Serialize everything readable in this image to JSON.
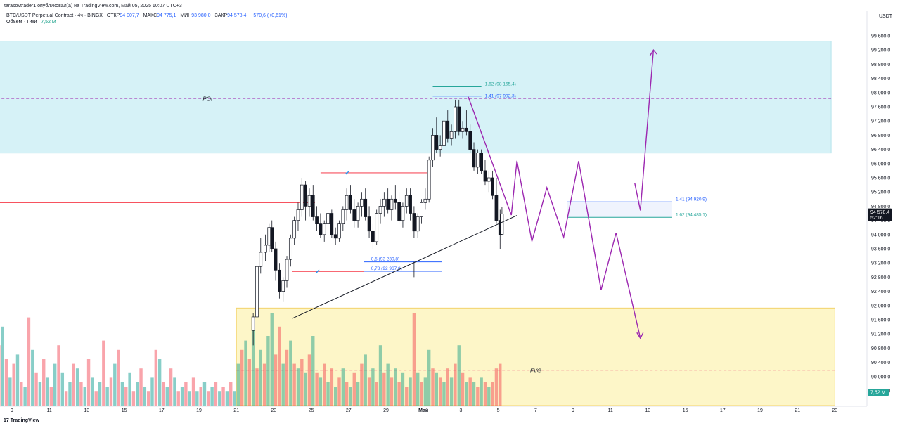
{
  "header": {
    "publisher_line": "tarasovtrader1 опубликовал(а) на TradingView.com, Май 05, 2025 10:07 UTC+3",
    "symbol": "BTC/USDT Perpetual Contract · 4ч · BINGX",
    "open_label": "ОТКР",
    "open_value": "94 007,7",
    "high_label": "МАКС",
    "high_value": "94 775,1",
    "low_label": "МИН",
    "low_value": "93 980,0",
    "close_label": "ЗАКР",
    "close_value": "94 578,4",
    "change": "+570,6 (+0,61%)",
    "volume_label": "Объём · Тики",
    "volume_value": "7,52 M"
  },
  "footer": {
    "brand": "TradingView",
    "logo_glyph": "17"
  },
  "chart_data": {
    "type": "candlestick",
    "currency": "USDT",
    "y_ticks": [
      "99 600,0",
      "99 200,0",
      "98 800,0",
      "98 400,0",
      "98 000,0",
      "97 600,0",
      "97 200,0",
      "96 800,0",
      "96 400,0",
      "96 000,0",
      "95 600,0",
      "95 200,0",
      "94 800,0",
      "94 400,0",
      "94 000,0",
      "93 600,0",
      "93 200,0",
      "92 800,0",
      "92 400,0",
      "92 000,0",
      "91 600,0",
      "91 200,0",
      "90 800,0",
      "90 400,0",
      "90 000,0",
      "89 600,0"
    ],
    "y_tick_values": [
      99600,
      99200,
      98800,
      98400,
      98000,
      97600,
      97200,
      96800,
      96400,
      96000,
      95600,
      95200,
      94800,
      94400,
      94000,
      93600,
      93200,
      92800,
      92400,
      92000,
      91600,
      91200,
      90800,
      90400,
      90000,
      89600
    ],
    "x_ticks": [
      "9",
      "11",
      "13",
      "15",
      "17",
      "19",
      "21",
      "23",
      "25",
      "27",
      "29",
      "Май",
      "3",
      "5",
      "7",
      "9",
      "11",
      "13",
      "15",
      "17",
      "19",
      "21",
      "23"
    ],
    "x_tick_days": [
      9,
      11,
      13,
      15,
      17,
      19,
      21,
      23,
      25,
      27,
      29,
      31,
      33,
      35,
      37,
      39,
      41,
      43,
      45,
      47,
      49,
      51,
      53
    ],
    "last_price": "94 578,4",
    "last_price_value": 94578.4,
    "countdown": "52:16",
    "volume_last": "7,52 M",
    "zones": [
      {
        "label": "POI",
        "from": 96300,
        "to": 99450,
        "line": 97830,
        "color": "#d6f2f7"
      },
      {
        "label": "FVG",
        "from": 89400,
        "to": 91930,
        "line": 90180,
        "color": "#fdf6c8"
      }
    ],
    "fib_levels": [
      {
        "label": "1,62 (98 165,4)",
        "value": 98165.4,
        "color": "#26a69a"
      },
      {
        "label": "1,41 (97 902,3)",
        "value": 97902.3,
        "color": "#2962ff"
      },
      {
        "label": "0,5 (93 230,8)",
        "value": 93230.8,
        "color": "#2962ff"
      },
      {
        "label": "0,78 (92 967,0)",
        "value": 92967.0,
        "color": "#2962ff"
      },
      {
        "label": "1,41 (94 920,9)",
        "value": 94920.9,
        "color": "#2962ff"
      },
      {
        "label": "1,62 (94 485,1)",
        "value": 94485.1,
        "color": "#26a69a"
      }
    ],
    "levels": [
      {
        "kind": "red",
        "from_day": 7.0,
        "to_day": 25.2,
        "value": 94900
      },
      {
        "kind": "red",
        "from_day": 25.5,
        "to_day": 31.3,
        "value": 95740
      },
      {
        "kind": "red",
        "from_day": 24.0,
        "to_day": 27.8,
        "value": 92960
      }
    ],
    "trendline": [
      [
        24.0,
        91640
      ],
      [
        36.0,
        94540
      ]
    ],
    "projection_path": [
      [
        33.4,
        97880
      ],
      [
        34.8,
        95850
      ],
      [
        35.7,
        94550
      ],
      [
        36.0,
        96080
      ],
      [
        36.8,
        93810
      ],
      [
        37.6,
        95320
      ],
      [
        38.5,
        93930
      ],
      [
        39.3,
        96070
      ],
      [
        40.5,
        92440
      ],
      [
        41.3,
        94050
      ],
      [
        42.6,
        91080
      ]
    ],
    "projection_up": [
      [
        42.3,
        95450
      ],
      [
        42.6,
        94680
      ],
      [
        43.3,
        99200
      ]
    ],
    "candles": [
      [
        21.9,
        91300,
        91780,
        90880,
        91680
      ],
      [
        22.1,
        91680,
        93200,
        91400,
        93100
      ],
      [
        22.3,
        93100,
        93900,
        92900,
        93500
      ],
      [
        22.55,
        93500,
        94000,
        93250,
        93700
      ],
      [
        22.75,
        93700,
        94300,
        93500,
        94200
      ],
      [
        22.9,
        94200,
        94400,
        93500,
        93600
      ],
      [
        23.1,
        93600,
        93800,
        92700,
        93000
      ],
      [
        23.3,
        93000,
        93200,
        92200,
        92400
      ],
      [
        23.5,
        92400,
        92800,
        92100,
        92700
      ],
      [
        23.7,
        92700,
        93400,
        92500,
        93300
      ],
      [
        23.9,
        93300,
        94000,
        93100,
        93900
      ],
      [
        24.1,
        93900,
        94500,
        93700,
        94400
      ],
      [
        24.3,
        94400,
        94900,
        94100,
        94700
      ],
      [
        24.5,
        94700,
        95600,
        94500,
        95400
      ],
      [
        24.7,
        95400,
        95500,
        94400,
        94800
      ],
      [
        24.9,
        94800,
        95300,
        94500,
        95100
      ],
      [
        25.1,
        95100,
        95400,
        94400,
        94500
      ],
      [
        25.3,
        94500,
        94800,
        94100,
        94300
      ],
      [
        25.5,
        94300,
        94600,
        93900,
        94000
      ],
      [
        25.7,
        94000,
        94400,
        93800,
        94300
      ],
      [
        25.9,
        94300,
        94700,
        94100,
        94600
      ],
      [
        26.1,
        94600,
        94700,
        93900,
        94000
      ],
      [
        26.3,
        94000,
        94200,
        93700,
        93900
      ],
      [
        26.5,
        93900,
        94400,
        93800,
        94300
      ],
      [
        26.7,
        94300,
        94800,
        94100,
        94700
      ],
      [
        26.9,
        94700,
        95300,
        94400,
        95100
      ],
      [
        27.1,
        95100,
        95400,
        94600,
        94700
      ],
      [
        27.3,
        94700,
        95000,
        94200,
        94400
      ],
      [
        27.5,
        94400,
        94900,
        94200,
        94800
      ],
      [
        27.7,
        94800,
        95200,
        94500,
        95000
      ],
      [
        27.9,
        95000,
        95300,
        94400,
        94500
      ],
      [
        28.1,
        94500,
        94800,
        93900,
        94100
      ],
      [
        28.3,
        94100,
        94300,
        93600,
        93800
      ],
      [
        28.5,
        93800,
        94700,
        93700,
        94600
      ],
      [
        28.7,
        94600,
        95000,
        94300,
        94800
      ],
      [
        28.9,
        94800,
        95200,
        94500,
        95000
      ],
      [
        29.1,
        95000,
        95300,
        94600,
        94700
      ],
      [
        29.3,
        94700,
        95100,
        94400,
        95000
      ],
      [
        29.5,
        95000,
        95400,
        94700,
        94900
      ],
      [
        29.7,
        94900,
        95200,
        94300,
        94400
      ],
      [
        29.9,
        94400,
        94900,
        94200,
        94800
      ],
      [
        30.1,
        94800,
        95300,
        94600,
        95100
      ],
      [
        30.3,
        95100,
        95300,
        94400,
        94600
      ],
      [
        30.5,
        94600,
        94800,
        93900,
        94100
      ],
      [
        30.7,
        94100,
        94600,
        93900,
        94500
      ],
      [
        30.9,
        94500,
        95000,
        94300,
        94900
      ],
      [
        31.1,
        94900,
        95300,
        94700,
        95000
      ],
      [
        31.3,
        95000,
        96200,
        94900,
        96100
      ],
      [
        31.5,
        96100,
        97000,
        95900,
        96800
      ],
      [
        31.7,
        96800,
        97300,
        96300,
        96400
      ],
      [
        31.9,
        96400,
        96800,
        96200,
        96500
      ],
      [
        32.1,
        96500,
        97300,
        96300,
        97200
      ],
      [
        32.3,
        97200,
        97500,
        96600,
        96700
      ],
      [
        32.5,
        96700,
        97100,
        96500,
        96900
      ],
      [
        32.7,
        96900,
        97800,
        96700,
        97600
      ],
      [
        32.9,
        97600,
        97800,
        96800,
        96900
      ],
      [
        33.1,
        96900,
        97200,
        96700,
        97000
      ],
      [
        33.3,
        97000,
        97500,
        96800,
        96900
      ],
      [
        33.5,
        96900,
        97100,
        96300,
        96400
      ],
      [
        33.7,
        96400,
        96600,
        95800,
        95900
      ],
      [
        33.9,
        95900,
        96400,
        95700,
        96300
      ],
      [
        34.1,
        96300,
        96400,
        95700,
        95800
      ],
      [
        34.3,
        95800,
        96100,
        95400,
        95500
      ],
      [
        34.5,
        95500,
        95800,
        95200,
        95600
      ],
      [
        34.7,
        95600,
        95800,
        95000,
        95100
      ],
      [
        34.9,
        95100,
        95600,
        94300,
        94400
      ],
      [
        35.1,
        94400,
        94700,
        93600,
        94000
      ],
      [
        35.2,
        94007.7,
        94775.1,
        93980.0,
        94578.4
      ]
    ],
    "volume_bars": [
      [
        7.0,
        17,
        "r"
      ],
      [
        7.2,
        14,
        "r"
      ],
      [
        7.35,
        9,
        "t"
      ],
      [
        7.5,
        7,
        "r"
      ],
      [
        7.7,
        10,
        "t"
      ],
      [
        7.9,
        12,
        "r"
      ],
      [
        8.1,
        8,
        "t"
      ],
      [
        8.3,
        13,
        "r"
      ],
      [
        8.5,
        17,
        "t"
      ],
      [
        8.7,
        10,
        "r"
      ],
      [
        8.9,
        6,
        "t"
      ],
      [
        9.1,
        9,
        "r"
      ],
      [
        9.3,
        11,
        "t"
      ],
      [
        9.5,
        5,
        "r"
      ],
      [
        9.7,
        4,
        "t"
      ],
      [
        9.9,
        19,
        "r"
      ],
      [
        10.1,
        12,
        "t"
      ],
      [
        10.3,
        7,
        "r"
      ],
      [
        10.5,
        5,
        "t"
      ],
      [
        10.7,
        10,
        "r"
      ],
      [
        10.9,
        6,
        "t"
      ],
      [
        11.1,
        4,
        "r"
      ],
      [
        11.3,
        9,
        "t"
      ],
      [
        11.5,
        13,
        "r"
      ],
      [
        11.7,
        7,
        "t"
      ],
      [
        11.9,
        3,
        "r"
      ],
      [
        12.1,
        5,
        "t"
      ],
      [
        12.3,
        9,
        "r"
      ],
      [
        12.5,
        8,
        "t"
      ],
      [
        12.7,
        5,
        "r"
      ],
      [
        12.9,
        4,
        "t"
      ],
      [
        13.1,
        10,
        "r"
      ],
      [
        13.3,
        6,
        "t"
      ],
      [
        13.5,
        3,
        "r"
      ],
      [
        13.7,
        5,
        "t"
      ],
      [
        13.9,
        14,
        "r"
      ],
      [
        14.1,
        4,
        "t"
      ],
      [
        14.3,
        6,
        "r"
      ],
      [
        14.5,
        9,
        "t"
      ],
      [
        14.7,
        12,
        "r"
      ],
      [
        14.9,
        5,
        "t"
      ],
      [
        15.1,
        4,
        "r"
      ],
      [
        15.3,
        7,
        "t"
      ],
      [
        15.5,
        3,
        "r"
      ],
      [
        15.7,
        5,
        "t"
      ],
      [
        15.9,
        8,
        "r"
      ],
      [
        16.1,
        4,
        "t"
      ],
      [
        16.3,
        3,
        "r"
      ],
      [
        16.5,
        6,
        "t"
      ],
      [
        16.7,
        12,
        "r"
      ],
      [
        16.9,
        10,
        "t"
      ],
      [
        17.1,
        5,
        "r"
      ],
      [
        17.3,
        4,
        "t"
      ],
      [
        17.5,
        8,
        "r"
      ],
      [
        17.7,
        6,
        "t"
      ],
      [
        17.9,
        3,
        "r"
      ],
      [
        18.1,
        4,
        "t"
      ],
      [
        18.3,
        5,
        "r"
      ],
      [
        18.5,
        3,
        "t"
      ],
      [
        18.7,
        6,
        "r"
      ],
      [
        18.9,
        3,
        "t"
      ],
      [
        19.1,
        4,
        "r"
      ],
      [
        19.3,
        5,
        "t"
      ],
      [
        19.5,
        3,
        "r"
      ],
      [
        19.7,
        4,
        "t"
      ],
      [
        19.9,
        5,
        "r"
      ],
      [
        20.1,
        3,
        "t"
      ],
      [
        20.3,
        4,
        "r"
      ],
      [
        20.5,
        3,
        "t"
      ],
      [
        20.7,
        5,
        "r"
      ],
      [
        20.9,
        3,
        "t"
      ],
      [
        21.1,
        9,
        "g"
      ],
      [
        21.3,
        12,
        "r"
      ],
      [
        21.5,
        14,
        "g"
      ],
      [
        21.7,
        10,
        "r"
      ],
      [
        21.9,
        19,
        "g"
      ],
      [
        22.1,
        8,
        "r"
      ],
      [
        22.3,
        12,
        "g"
      ],
      [
        22.5,
        9,
        "r"
      ],
      [
        22.7,
        15,
        "g"
      ],
      [
        22.9,
        20,
        "g"
      ],
      [
        23.1,
        11,
        "r"
      ],
      [
        23.3,
        17,
        "r"
      ],
      [
        23.5,
        9,
        "g"
      ],
      [
        23.7,
        12,
        "r"
      ],
      [
        23.9,
        14,
        "g"
      ],
      [
        24.1,
        9,
        "r"
      ],
      [
        24.3,
        8,
        "g"
      ],
      [
        24.5,
        10,
        "r"
      ],
      [
        24.7,
        7,
        "g"
      ],
      [
        24.9,
        11,
        "r"
      ],
      [
        25.1,
        15,
        "g"
      ],
      [
        25.3,
        7,
        "r"
      ],
      [
        25.5,
        6,
        "g"
      ],
      [
        25.7,
        9,
        "r"
      ],
      [
        25.9,
        5,
        "g"
      ],
      [
        26.1,
        8,
        "r"
      ],
      [
        26.3,
        4,
        "g"
      ],
      [
        26.5,
        6,
        "r"
      ],
      [
        26.7,
        8,
        "g"
      ],
      [
        26.9,
        5,
        "r"
      ],
      [
        27.1,
        4,
        "g"
      ],
      [
        27.3,
        7,
        "r"
      ],
      [
        27.5,
        5,
        "g"
      ],
      [
        27.7,
        9,
        "r"
      ],
      [
        27.9,
        11,
        "g"
      ],
      [
        28.1,
        6,
        "r"
      ],
      [
        28.3,
        8,
        "g"
      ],
      [
        28.5,
        5,
        "r"
      ],
      [
        28.7,
        13,
        "g"
      ],
      [
        28.9,
        7,
        "r"
      ],
      [
        29.1,
        9,
        "g"
      ],
      [
        29.3,
        6,
        "r"
      ],
      [
        29.5,
        8,
        "g"
      ],
      [
        29.7,
        5,
        "r"
      ],
      [
        29.9,
        7,
        "g"
      ],
      [
        30.1,
        4,
        "r"
      ],
      [
        30.3,
        6,
        "g"
      ],
      [
        30.5,
        20,
        "r"
      ],
      [
        30.7,
        7,
        "g"
      ],
      [
        30.9,
        5,
        "r"
      ],
      [
        31.1,
        6,
        "g"
      ],
      [
        31.3,
        12,
        "g"
      ],
      [
        31.5,
        8,
        "r"
      ],
      [
        31.7,
        7,
        "g"
      ],
      [
        31.9,
        6,
        "r"
      ],
      [
        32.1,
        5,
        "g"
      ],
      [
        32.3,
        8,
        "r"
      ],
      [
        32.5,
        6,
        "g"
      ],
      [
        32.7,
        9,
        "r"
      ],
      [
        32.9,
        13,
        "g"
      ],
      [
        33.1,
        7,
        "r"
      ],
      [
        33.3,
        5,
        "g"
      ],
      [
        33.5,
        6,
        "r"
      ],
      [
        33.7,
        5,
        "g"
      ],
      [
        33.9,
        4,
        "r"
      ],
      [
        34.1,
        6,
        "g"
      ],
      [
        34.3,
        5,
        "r"
      ],
      [
        34.5,
        4,
        "g"
      ],
      [
        34.7,
        5,
        "r"
      ],
      [
        34.9,
        8,
        "r"
      ],
      [
        35.1,
        9,
        "r"
      ]
    ]
  }
}
